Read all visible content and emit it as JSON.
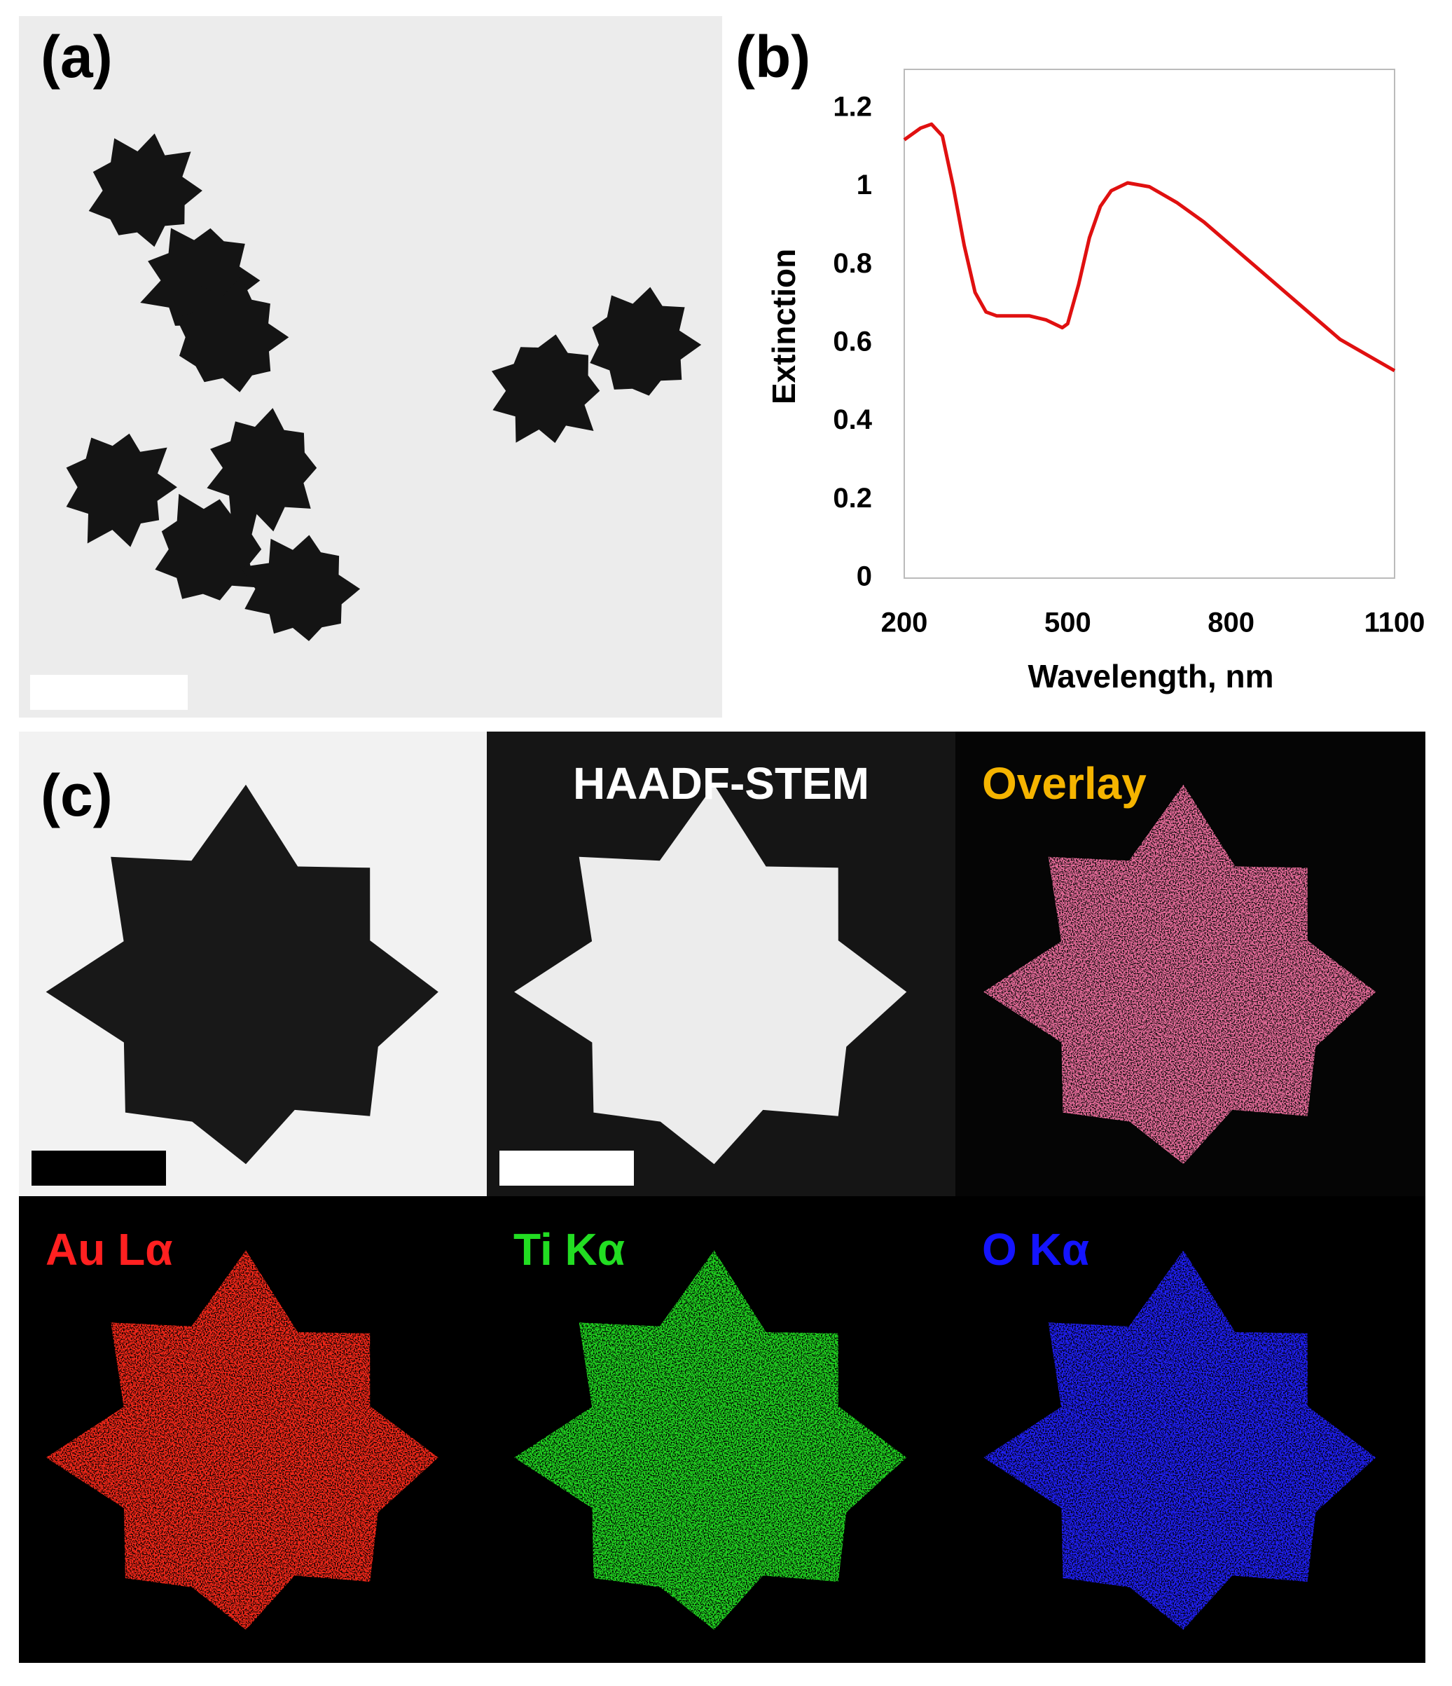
{
  "panels": {
    "a": "(a)",
    "b": "(b)",
    "c": "(c)"
  },
  "tiles": [
    "HAADF-STEM",
    "Overlay",
    "Au Lα",
    "Ti Kα",
    "O Kα"
  ],
  "chart_data": {
    "type": "line",
    "xlabel": "Wavelength, nm",
    "ylabel": "Extinction",
    "color": "#e01010",
    "x": [
      200,
      230,
      250,
      270,
      290,
      310,
      330,
      350,
      370,
      400,
      430,
      460,
      490,
      500,
      520,
      540,
      560,
      580,
      610,
      650,
      700,
      750,
      800,
      850,
      900,
      950,
      1000,
      1050,
      1100
    ],
    "values": [
      1.12,
      1.15,
      1.16,
      1.13,
      1.0,
      0.85,
      0.73,
      0.68,
      0.67,
      0.67,
      0.67,
      0.66,
      0.64,
      0.65,
      0.75,
      0.87,
      0.95,
      0.99,
      1.01,
      1.0,
      0.96,
      0.91,
      0.85,
      0.79,
      0.73,
      0.67,
      0.61,
      0.57,
      0.53
    ],
    "xlim": [
      200,
      1100
    ],
    "ylim": [
      0,
      1.3
    ],
    "xticks": [
      200,
      500,
      800,
      1100
    ],
    "yticks": [
      0,
      0.2,
      0.4,
      0.6,
      0.8,
      1,
      1.2
    ]
  }
}
